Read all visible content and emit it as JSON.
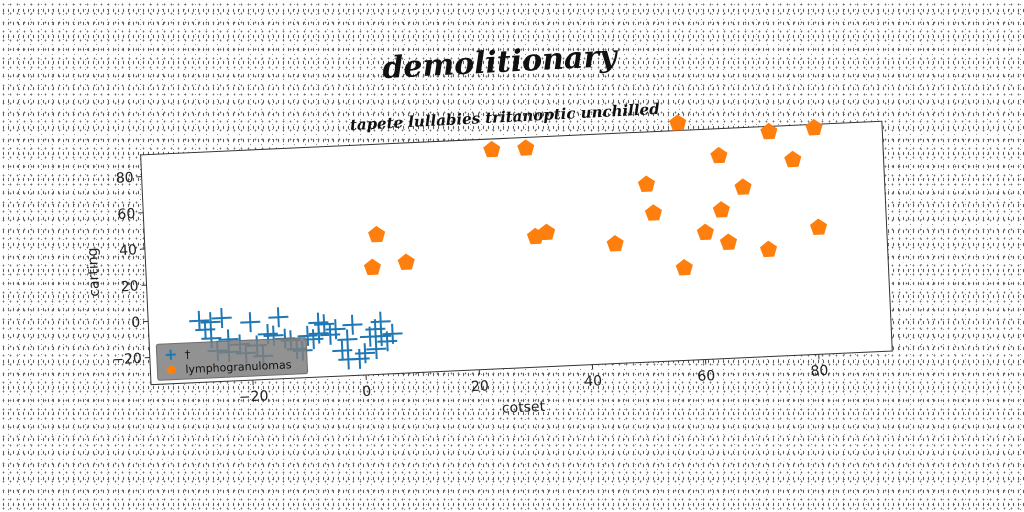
{
  "chart_data": {
    "type": "scatter",
    "title": "demolitionary",
    "subtitle": "tapete lullabies tritanoptic unchilled",
    "xlabel": "cotset",
    "ylabel": "carting",
    "xlim": [
      -38,
      93
    ],
    "ylim": [
      -35,
      92
    ],
    "xticks": [
      -20,
      0,
      20,
      40,
      60,
      80
    ],
    "yticks": [
      -20,
      0,
      20,
      40,
      60,
      80
    ],
    "grid": false,
    "legend_position": "lower-left",
    "series": [
      {
        "name": "†",
        "marker": "plus",
        "color": "#1f77b4",
        "points": [
          [
            -29,
            -1
          ],
          [
            -27,
            -2
          ],
          [
            -25,
            0
          ],
          [
            -27,
            -11
          ],
          [
            -24,
            -12
          ],
          [
            -22,
            -15
          ],
          [
            -21,
            -20
          ],
          [
            -19,
            -16
          ],
          [
            -18,
            -22
          ],
          [
            -17,
            -10
          ],
          [
            -16,
            -11
          ],
          [
            -15,
            -1
          ],
          [
            -14,
            -13
          ],
          [
            -13,
            -14
          ],
          [
            -12,
            -19
          ],
          [
            -11,
            -20
          ],
          [
            -10,
            -12
          ],
          [
            -9,
            -14
          ],
          [
            -8,
            -11
          ],
          [
            -8,
            -5
          ],
          [
            -7,
            -6
          ],
          [
            -6,
            -12
          ],
          [
            -5,
            -9
          ],
          [
            -3,
            -15
          ],
          [
            -2,
            -7
          ],
          [
            -1,
            -26
          ],
          [
            -3,
            -26
          ],
          [
            0,
            -23
          ],
          [
            1,
            -14
          ],
          [
            2,
            -10
          ],
          [
            2,
            -21
          ],
          [
            3,
            -14
          ],
          [
            4,
            -17
          ],
          [
            5,
            -13
          ],
          [
            -24,
            -19
          ],
          [
            -28,
            -6
          ],
          [
            -20,
            -3
          ],
          [
            -26,
            -18
          ],
          [
            -4,
            -21
          ],
          [
            3,
            -6
          ]
        ]
      },
      {
        "name": "lymphogranulomas",
        "marker": "pentagon",
        "color": "#ff7f0e",
        "points": [
          [
            2,
            24
          ],
          [
            3,
            42
          ],
          [
            8,
            26
          ],
          [
            24,
            86
          ],
          [
            30,
            86
          ],
          [
            31,
            37
          ],
          [
            33,
            39
          ],
          [
            45,
            31
          ],
          [
            51,
            63
          ],
          [
            52,
            47
          ],
          [
            57,
            96
          ],
          [
            57,
            16
          ],
          [
            61,
            35
          ],
          [
            64,
            77
          ],
          [
            64,
            47
          ],
          [
            65,
            29
          ],
          [
            68,
            59
          ],
          [
            72,
            24
          ],
          [
            73,
            89
          ],
          [
            77,
            73
          ],
          [
            81,
            90
          ],
          [
            81,
            35
          ]
        ]
      }
    ]
  }
}
